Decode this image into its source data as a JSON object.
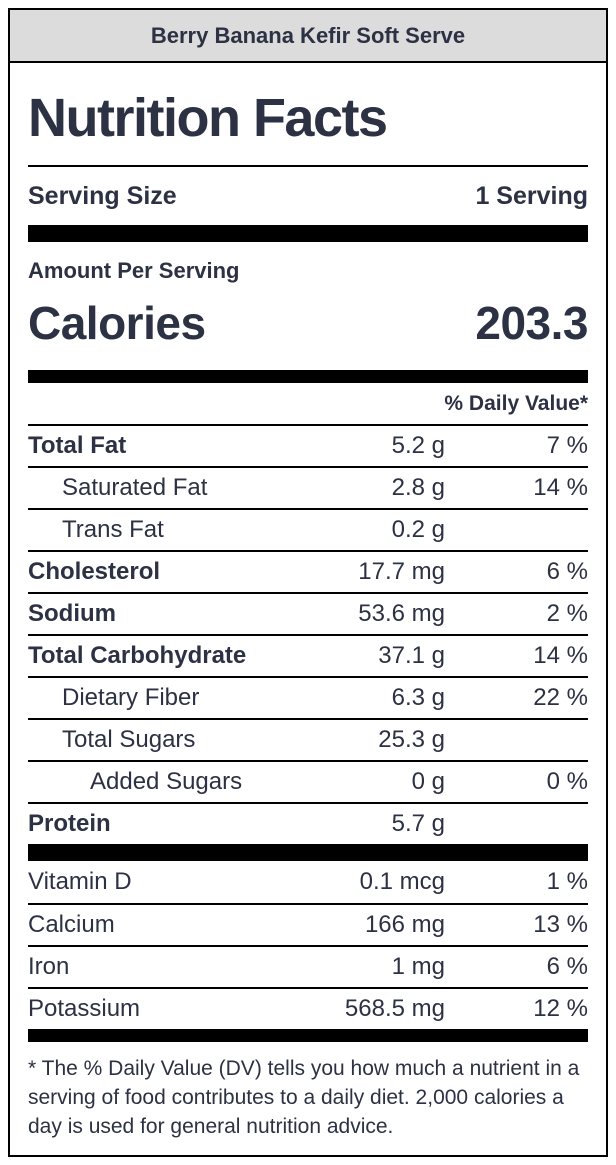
{
  "banner": {
    "title": "Berry Banana Kefir Soft Serve"
  },
  "label": {
    "title": "Nutrition Facts",
    "serving": {
      "label": "Serving Size",
      "value": "1 Serving"
    },
    "amount_per_serving": "Amount Per Serving",
    "calories": {
      "label": "Calories",
      "value": "203.3"
    },
    "daily_value_header": "% Daily Value*",
    "rows": [
      {
        "name": "Total Fat",
        "amount": "5.2 g",
        "dv": "7 %"
      },
      {
        "name": "Saturated Fat",
        "amount": "2.8 g",
        "dv": "14 %"
      },
      {
        "name": "Trans Fat",
        "amount": "0.2 g",
        "dv": ""
      },
      {
        "name": "Cholesterol",
        "amount": "17.7 mg",
        "dv": "6 %"
      },
      {
        "name": "Sodium",
        "amount": "53.6 mg",
        "dv": "2 %"
      },
      {
        "name": "Total Carbohydrate",
        "amount": "37.1 g",
        "dv": "14 %"
      },
      {
        "name": "Dietary Fiber",
        "amount": "6.3 g",
        "dv": "22 %"
      },
      {
        "name": "Total Sugars",
        "amount": "25.3 g",
        "dv": ""
      },
      {
        "name": "Added Sugars",
        "amount": "0 g",
        "dv": "0 %"
      },
      {
        "name": "Protein",
        "amount": "5.7 g",
        "dv": ""
      }
    ],
    "micronutrients": [
      {
        "name": "Vitamin D",
        "amount": "0.1 mcg",
        "dv": "1 %"
      },
      {
        "name": "Calcium",
        "amount": "166 mg",
        "dv": "13 %"
      },
      {
        "name": "Iron",
        "amount": "1 mg",
        "dv": "6 %"
      },
      {
        "name": "Potassium",
        "amount": "568.5 mg",
        "dv": "12 %"
      }
    ],
    "footnote": "* The % Daily Value (DV) tells you how much a nutrient in a serving of food contributes to a daily diet. 2,000 calories a day is used for general nutrition advice."
  },
  "colors": {
    "text": "#2c3143",
    "banner_bg": "#dcdcdc",
    "rule": "#000000",
    "background": "#ffffff"
  }
}
